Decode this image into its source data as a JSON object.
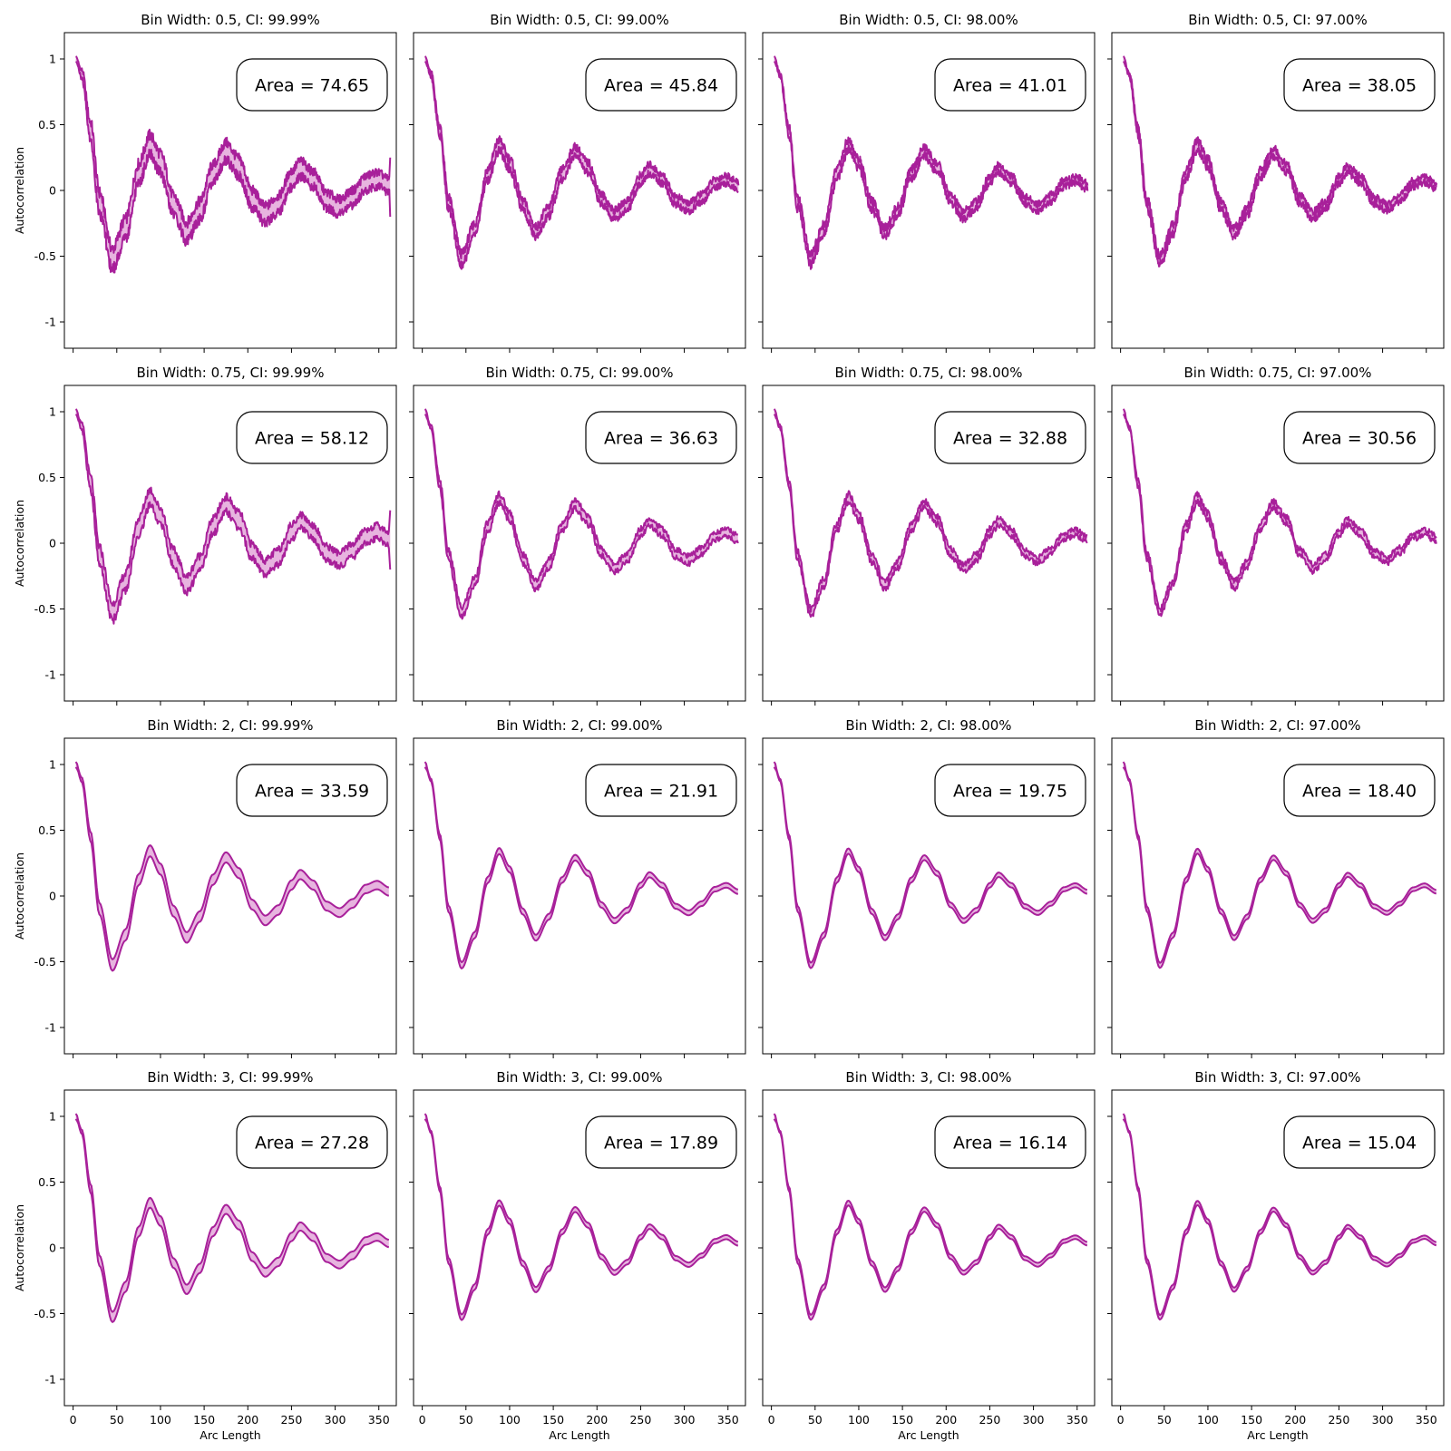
{
  "style": {
    "line_color": "#a8209a",
    "fill_color": "#e7b4df"
  },
  "chart_data": {
    "type": "line",
    "grid": false,
    "xlabel": "Arc Length",
    "ylabel": "Autocorrelation",
    "xlim": [
      -10,
      370
    ],
    "ylim": [
      -1.2,
      1.2
    ],
    "xticks": [
      0,
      50,
      100,
      150,
      200,
      250,
      300,
      350
    ],
    "xtick_labels": [
      "0",
      "50",
      "100",
      "150",
      "200",
      "250",
      "300",
      "350"
    ],
    "yticks": [
      1,
      0.5,
      0,
      -0.5,
      -1
    ],
    "ytick_labels": [
      "1",
      "0.5",
      "0",
      "-0.5",
      "-1"
    ],
    "x_range": [
      3,
      362
    ],
    "mean_curve": {
      "x": [
        3,
        10,
        20,
        30,
        45,
        60,
        75,
        88,
        100,
        115,
        130,
        145,
        160,
        175,
        190,
        205,
        220,
        235,
        250,
        260,
        275,
        290,
        305,
        320,
        335,
        348,
        362
      ],
      "y": [
        1.0,
        0.88,
        0.45,
        -0.1,
        -0.53,
        -0.3,
        0.12,
        0.34,
        0.2,
        -0.12,
        -0.32,
        -0.16,
        0.12,
        0.29,
        0.17,
        -0.07,
        -0.19,
        -0.11,
        0.08,
        0.16,
        0.08,
        -0.08,
        -0.13,
        -0.06,
        0.05,
        0.08,
        0.03
      ]
    },
    "panels": [
      {
        "title": "Bin Width: 0.5, CI: 99.99%",
        "area_label": "Area = 74.65"
      },
      {
        "title": "Bin Width: 0.5, CI: 99.00%",
        "area_label": "Area = 45.84"
      },
      {
        "title": "Bin Width: 0.5, CI: 98.00%",
        "area_label": "Area = 41.01"
      },
      {
        "title": "Bin Width: 0.5, CI: 97.00%",
        "area_label": "Area = 38.05"
      },
      {
        "title": "Bin Width: 0.75, CI: 99.99%",
        "area_label": "Area = 58.12"
      },
      {
        "title": "Bin Width: 0.75, CI: 99.00%",
        "area_label": "Area = 36.63"
      },
      {
        "title": "Bin Width: 0.75, CI: 98.00%",
        "area_label": "Area = 32.88"
      },
      {
        "title": "Bin Width: 0.75, CI: 97.00%",
        "area_label": "Area = 30.56"
      },
      {
        "title": "Bin Width: 2, CI: 99.99%",
        "area_label": "Area = 33.59"
      },
      {
        "title": "Bin Width: 2, CI: 99.00%",
        "area_label": "Area = 21.91"
      },
      {
        "title": "Bin Width: 2, CI: 98.00%",
        "area_label": "Area = 19.75"
      },
      {
        "title": "Bin Width: 2, CI: 97.00%",
        "area_label": "Area = 18.40"
      },
      {
        "title": "Bin Width: 3, CI: 99.99%",
        "area_label": "Area = 27.28"
      },
      {
        "title": "Bin Width: 3, CI: 99.00%",
        "area_label": "Area = 17.89"
      },
      {
        "title": "Bin Width: 3, CI: 98.00%",
        "area_label": "Area = 16.14"
      },
      {
        "title": "Bin Width: 3, CI: 97.00%",
        "area_label": "Area = 15.04"
      }
    ]
  }
}
